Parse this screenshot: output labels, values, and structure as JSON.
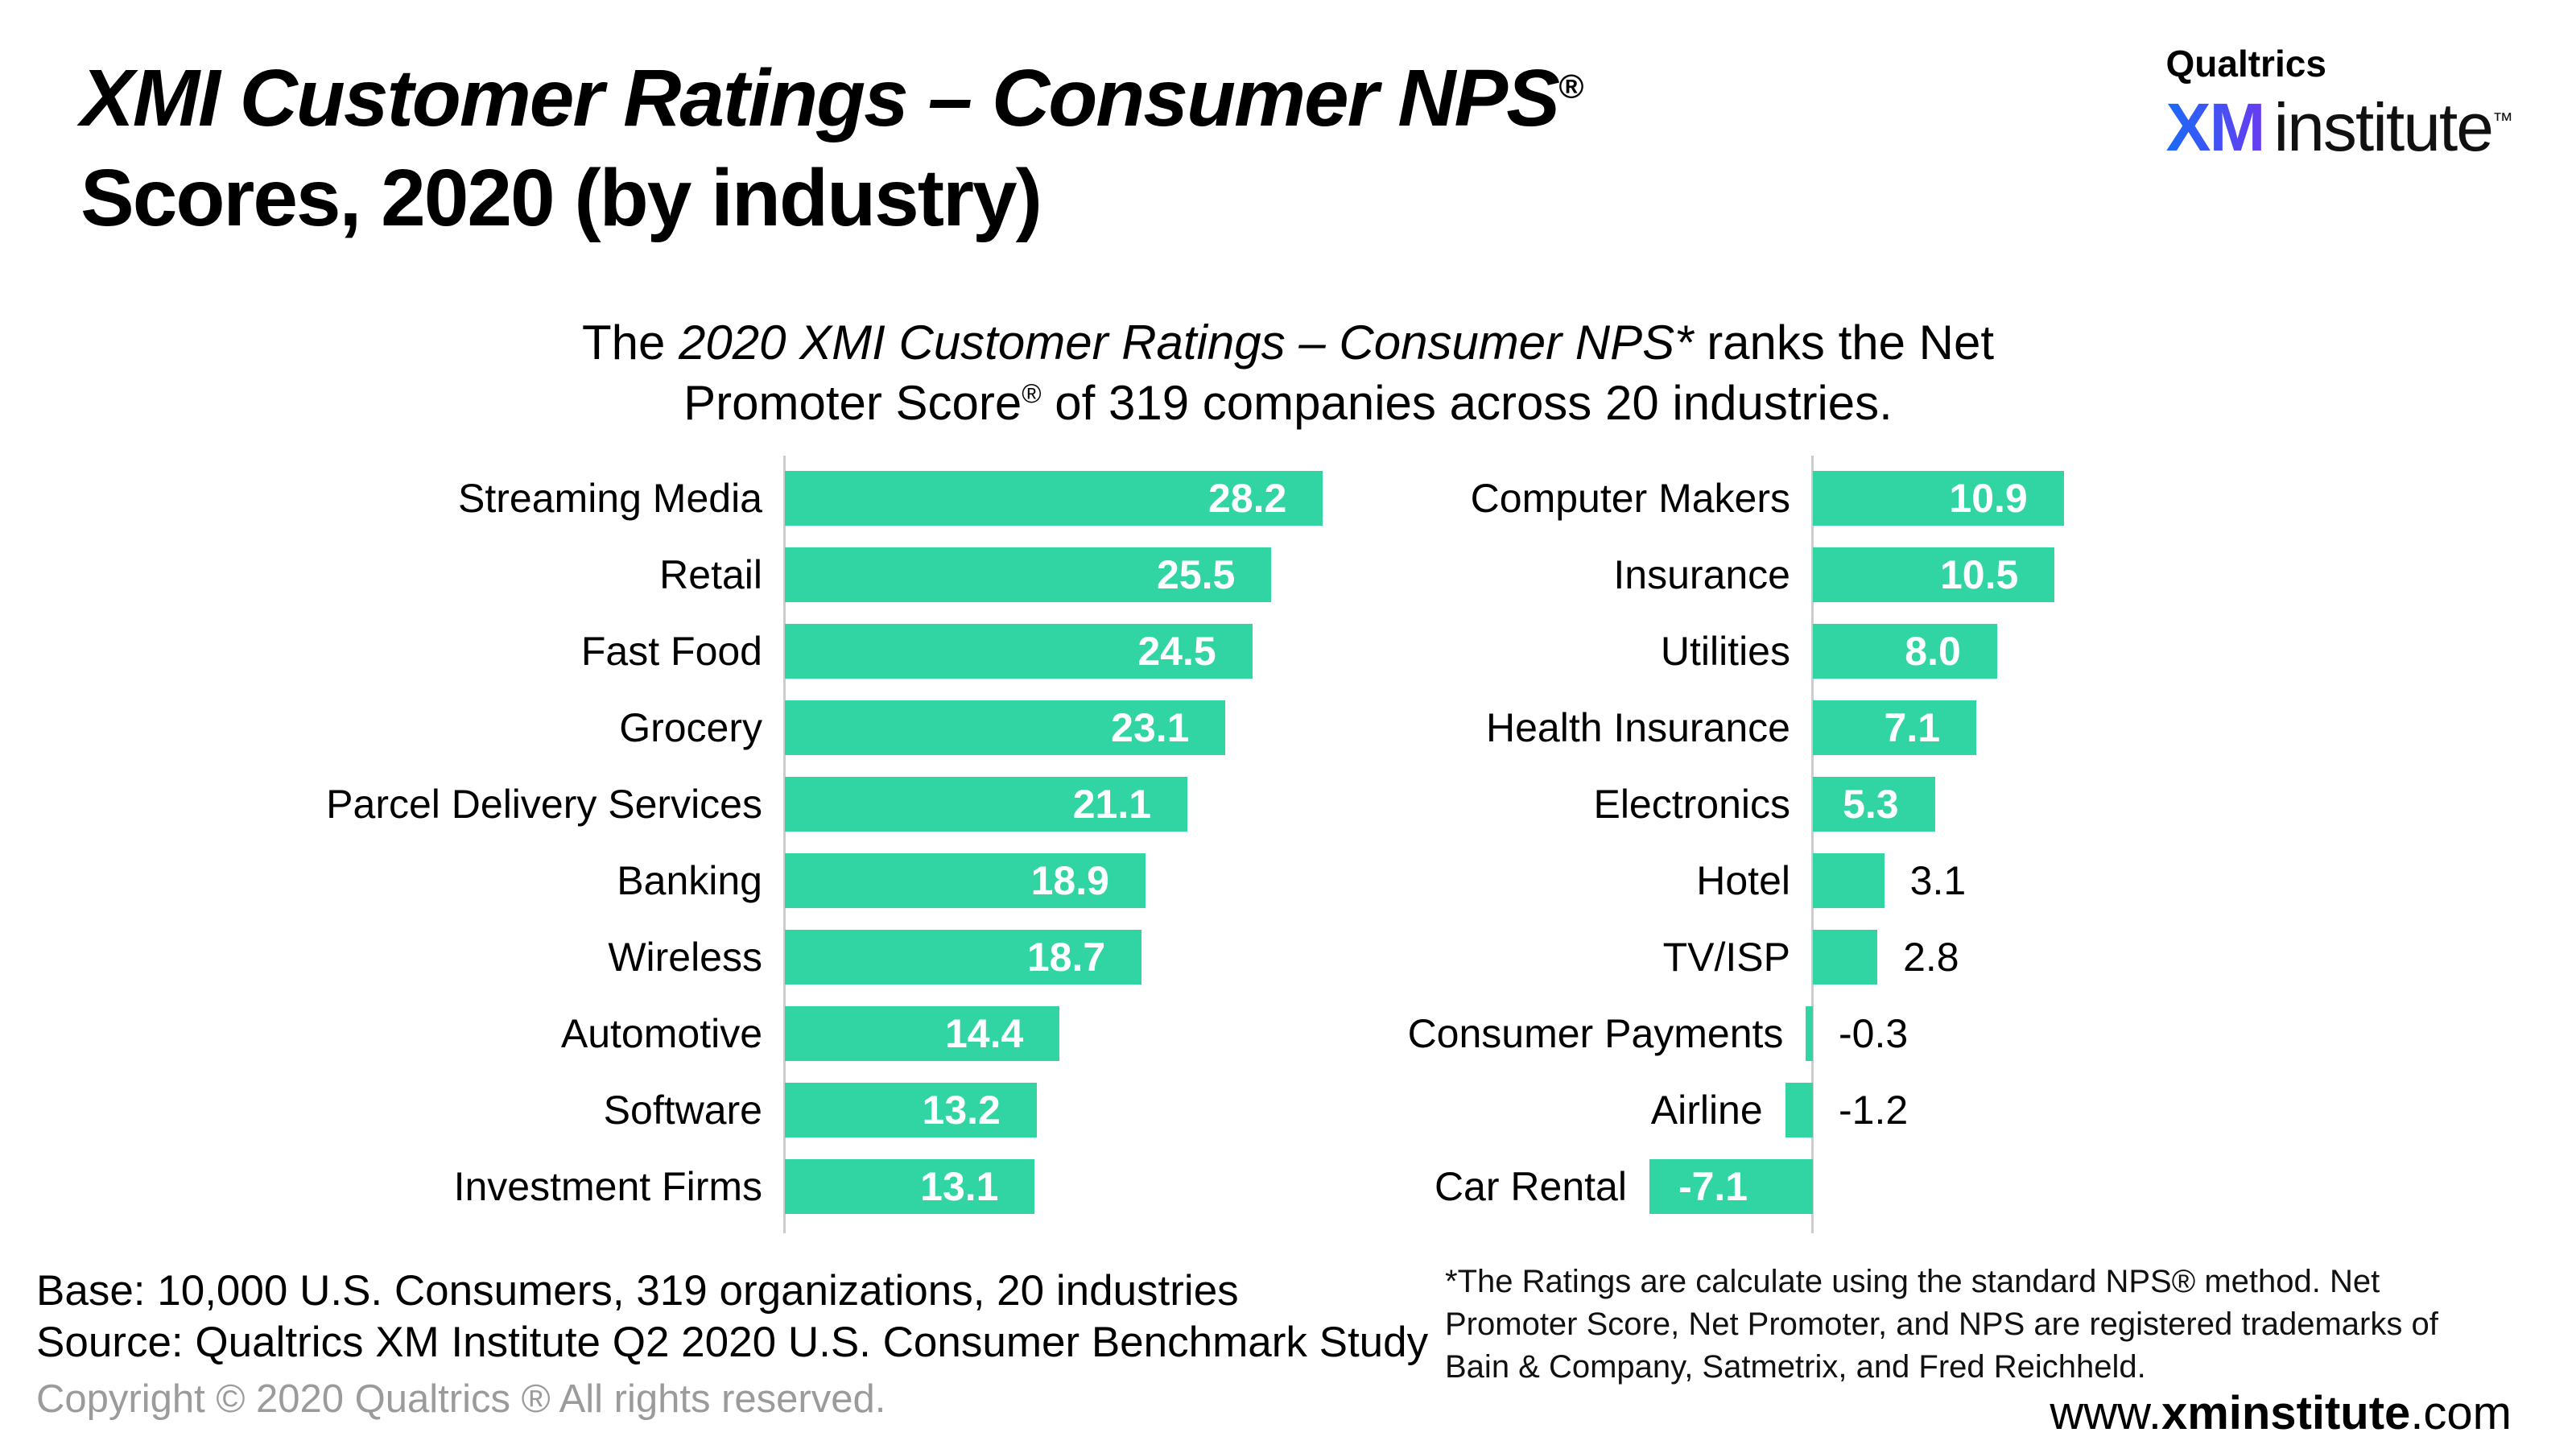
{
  "header": {
    "title_line1_main": "XMI Customer Ratings – Consumer NPS",
    "title_reg": "®",
    "title_line2": "Scores, 2020 (by industry)"
  },
  "logo": {
    "qualtrics": "Qualtrics",
    "xm": "XM",
    "institute": "institute",
    "tm": "™"
  },
  "subtitle": {
    "line1_prefix": "The ",
    "line1_italic": "2020 XMI Customer Ratings – Consumer NPS*",
    "line1_suffix": " ranks the Net",
    "line2_pre": "Promoter Score",
    "line2_reg": "®",
    "line2_post": " of 319 companies across 20 industries."
  },
  "chart_data": {
    "type": "bar",
    "orientation": "horizontal",
    "title": "XMI Customer Ratings – Consumer NPS® Scores, 2020 (by industry)",
    "bar_color": "#30D5A3",
    "value_label_inside_color": "#FFFFFF",
    "value_label_outside_color": "#000000",
    "grid": false,
    "legend": false,
    "panels": [
      {
        "name": "left",
        "xlim": [
          0,
          30
        ],
        "categories": [
          "Streaming Media",
          "Retail",
          "Fast Food",
          "Grocery",
          "Parcel Delivery Services",
          "Banking",
          "Wireless",
          "Automotive",
          "Software",
          "Investment Firms"
        ],
        "values": [
          28.2,
          25.5,
          24.5,
          23.1,
          21.1,
          18.9,
          18.7,
          14.4,
          13.2,
          13.1
        ]
      },
      {
        "name": "right",
        "xlim": [
          -8,
          12
        ],
        "categories": [
          "Computer Makers",
          "Insurance",
          "Utilities",
          "Health Insurance",
          "Electronics",
          "Hotel",
          "TV/ISP",
          "Consumer Payments",
          "Airline",
          "Car Rental"
        ],
        "values": [
          10.9,
          10.5,
          8.0,
          7.1,
          5.3,
          3.1,
          2.8,
          -0.3,
          -1.2,
          -7.1
        ]
      }
    ]
  },
  "footer": {
    "base": "Base: 10,000 U.S. Consumers, 319 organizations, 20 industries",
    "source": "Source: Qualtrics XM Institute Q2 2020 U.S. Consumer Benchmark Study",
    "copyright": "Copyright © 2020 Qualtrics ® All rights reserved.",
    "footnote": "*The Ratings are calculate using the standard NPS® method. Net Promoter Score, Net Promoter, and NPS are registered trademarks of Bain & Company, Satmetrix, and Fred Reichheld.",
    "website_prefix": "www.",
    "website_bold": "xminstitute",
    "website_suffix": ".com"
  }
}
